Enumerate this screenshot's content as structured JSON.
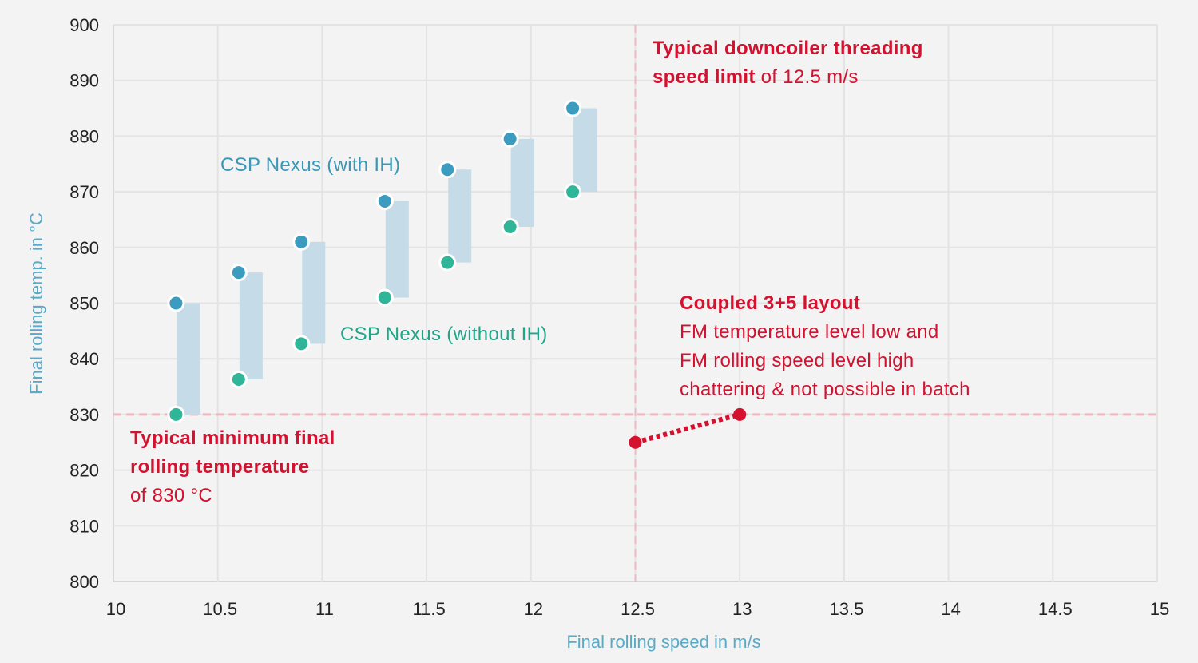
{
  "chart_data": {
    "type": "scatter",
    "title": "",
    "xlabel": "Final rolling speed in m/s",
    "ylabel": "Final rolling temp. in °C",
    "xlim": [
      10,
      15
    ],
    "ylim": [
      800,
      900
    ],
    "x_ticks": [
      "10",
      "10.5",
      "11",
      "11.5",
      "12",
      "12.5",
      "13",
      "13.5",
      "14",
      "14.5",
      "15"
    ],
    "y_ticks": [
      "800",
      "810",
      "820",
      "830",
      "840",
      "850",
      "860",
      "870",
      "880",
      "890",
      "900"
    ],
    "grid": true,
    "series": [
      {
        "name": "CSP Nexus (with IH)",
        "color": "#3c9cc0",
        "x": [
          10.3,
          10.6,
          10.9,
          11.3,
          11.6,
          11.9,
          12.2
        ],
        "y": [
          850,
          855.5,
          861,
          868.3,
          874,
          879.5,
          885
        ]
      },
      {
        "name": "CSP Nexus (without IH)",
        "color": "#2fb598",
        "x": [
          10.3,
          10.6,
          10.9,
          11.3,
          11.6,
          11.9,
          12.2
        ],
        "y": [
          830,
          836.3,
          842.7,
          851,
          857.3,
          863.7,
          870
        ]
      },
      {
        "name": "Coupled 3+5 layout",
        "color": "#d4112f",
        "x": [
          12.5,
          13.0
        ],
        "y": [
          825,
          830
        ]
      }
    ],
    "range_bar_color": "#c5dbe7",
    "reference_lines": [
      {
        "axis": "y",
        "value": 830,
        "color": "#f2b6c3"
      },
      {
        "axis": "x",
        "value": 12.5,
        "color": "#f2b6c3"
      }
    ],
    "annotations": {
      "downcoiler": {
        "line1": "Typical downcoiler threading",
        "line2_bold": "speed limit",
        "line2_rest": " of 12.5 m/s"
      },
      "min_temp": {
        "line1": "Typical minimum final",
        "line2": "rolling temperature",
        "line3": "of 830 °C"
      },
      "coupled": {
        "title": "Coupled 3+5 layout",
        "line1": "FM temperature level low and",
        "line2": "FM rolling speed level high",
        "line3": "chattering & not possible in batch"
      },
      "with_ih": "CSP Nexus (with IH)",
      "without_ih": "CSP Nexus (without IH)"
    },
    "colors": {
      "red": "#d4112f",
      "teal_label": "#3a97b8",
      "green_label": "#1ea688",
      "axis_title": "#5aaac6",
      "grid": "#e3e3e3",
      "background": "#f3f3f3"
    }
  }
}
